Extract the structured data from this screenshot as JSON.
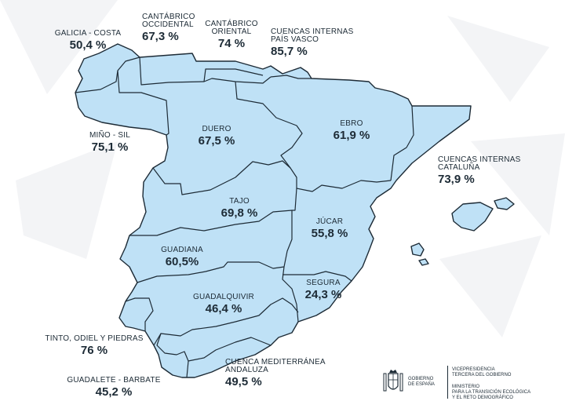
{
  "labels": {
    "galicia_costa": {
      "name": "GALICIA - COSTA",
      "value": "50,4 %"
    },
    "cantabrico_occidental": {
      "name1": "CANTÁBRICO",
      "name2": "OCCIDENTAL",
      "value": "67,3 %"
    },
    "cantabrico_oriental": {
      "name1": "CANTÁBRICO",
      "name2": "ORIENTAL",
      "value": "74 %"
    },
    "pais_vasco": {
      "name1": "CUENCAS INTERNAS",
      "name2": "PAÍS VASCO",
      "value": "85,7 %"
    },
    "mino_sil": {
      "name": "MIÑO - SIL",
      "value": "75,1 %"
    },
    "duero": {
      "name": "DUERO",
      "value": "67,5 %"
    },
    "ebro": {
      "name": "EBRO",
      "value": "61,9 %"
    },
    "cataluna": {
      "name1": "CUENCAS INTERNAS",
      "name2": "CATALUÑA",
      "value": "73,9 %"
    },
    "tajo": {
      "name": "TAJO",
      "value": "69,8 %"
    },
    "jucar": {
      "name": "JÚCAR",
      "value": "55,8 %"
    },
    "guadiana": {
      "name": "GUADIANA",
      "value": "60,5%"
    },
    "segura": {
      "name": "SEGURA",
      "value": "24,3 %"
    },
    "guadalquivir": {
      "name": "GUADALQUIVIR",
      "value": "46,4 %"
    },
    "tinto_odiel": {
      "name": "TINTO, ODIEL Y PIEDRAS",
      "value": "76 %"
    },
    "cuenca_mediterranea": {
      "name1": "CUENCA MEDITERRÁNEA",
      "name2": "ANDALUZA",
      "value": "49,5 %"
    },
    "guadalete_barbate": {
      "name": "GUADALETE - BARBATE",
      "value": "45,2 %"
    }
  },
  "footer": {
    "gov_line1": "GOBIERNO",
    "gov_line2": "DE ESPAÑA",
    "ministry_line1": "VICEPRESIDENCIA",
    "ministry_line2": "TERCERA DEL GOBIERNO",
    "ministry_line3": "MINISTERIO",
    "ministry_line4": "PARA LA TRANSICIÓN ECOLÓGICA",
    "ministry_line5": "Y EL RETO DEMOGRÁFICO"
  },
  "colors": {
    "basin_fill": "#bfe1f6",
    "border": "#1d2b36",
    "background_shapes": "#f3f4f6"
  }
}
